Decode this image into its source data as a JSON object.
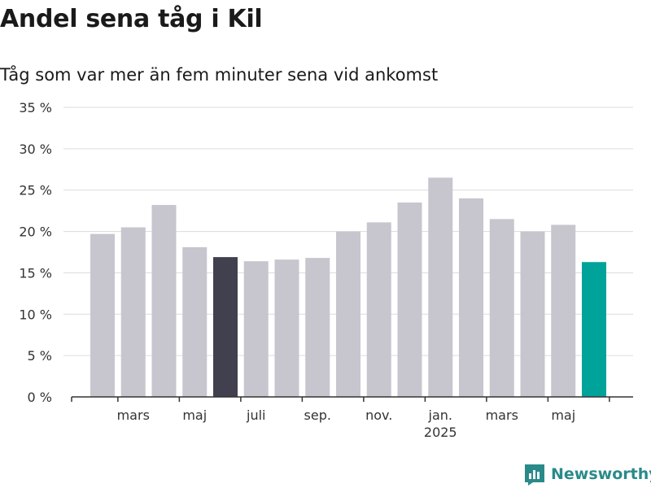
{
  "header": {
    "title": "Andel sena tåg i Kil",
    "subtitle": "Tåg som var mer än fem minuter sena vid ankomst"
  },
  "brand": {
    "name": "Newsworthy"
  },
  "colors": {
    "bar_default": "#c7c6ce",
    "bar_highlight": "#41404e",
    "bar_latest": "#00a39a",
    "grid": "#dcdcdc",
    "axis": "#333333",
    "brand": "#2a8a8a"
  },
  "chart_data": {
    "type": "bar",
    "title": "Andel sena tåg i Kil",
    "subtitle": "Tåg som var mer än fem minuter sena vid ankomst",
    "xlabel": "",
    "ylabel": "",
    "ylim": [
      0,
      35
    ],
    "yticks": [
      0,
      5,
      10,
      15,
      20,
      25,
      30,
      35
    ],
    "ytick_labels": [
      "0 %",
      "5 %",
      "10 %",
      "15 %",
      "20 %",
      "25 %",
      "30 %",
      "35 %"
    ],
    "grid": true,
    "categories": [
      "2024-02",
      "2024-03",
      "2024-04",
      "2024-05",
      "2024-06",
      "2024-07",
      "2024-08",
      "2024-09",
      "2024-10",
      "2024-11",
      "2024-12",
      "2025-01",
      "2025-02",
      "2025-03",
      "2025-04",
      "2025-05",
      "2025-06"
    ],
    "values": [
      19.7,
      20.5,
      23.2,
      18.1,
      16.9,
      16.4,
      16.6,
      16.8,
      20.0,
      21.1,
      23.5,
      26.5,
      24.0,
      21.5,
      20.0,
      20.8,
      16.3
    ],
    "bar_styles": [
      "default",
      "default",
      "default",
      "default",
      "highlight",
      "default",
      "default",
      "default",
      "default",
      "default",
      "default",
      "default",
      "default",
      "default",
      "default",
      "default",
      "latest"
    ],
    "xtick_labels": [
      {
        "category": "2024-03",
        "label": "mars"
      },
      {
        "category": "2024-05",
        "label": "maj"
      },
      {
        "category": "2024-07",
        "label": "juli"
      },
      {
        "category": "2024-09",
        "label": "sep."
      },
      {
        "category": "2024-11",
        "label": "nov."
      },
      {
        "category": "2025-01",
        "label": "jan.",
        "sublabel": "2025"
      },
      {
        "category": "2025-03",
        "label": "mars"
      },
      {
        "category": "2025-05",
        "label": "maj"
      }
    ]
  }
}
